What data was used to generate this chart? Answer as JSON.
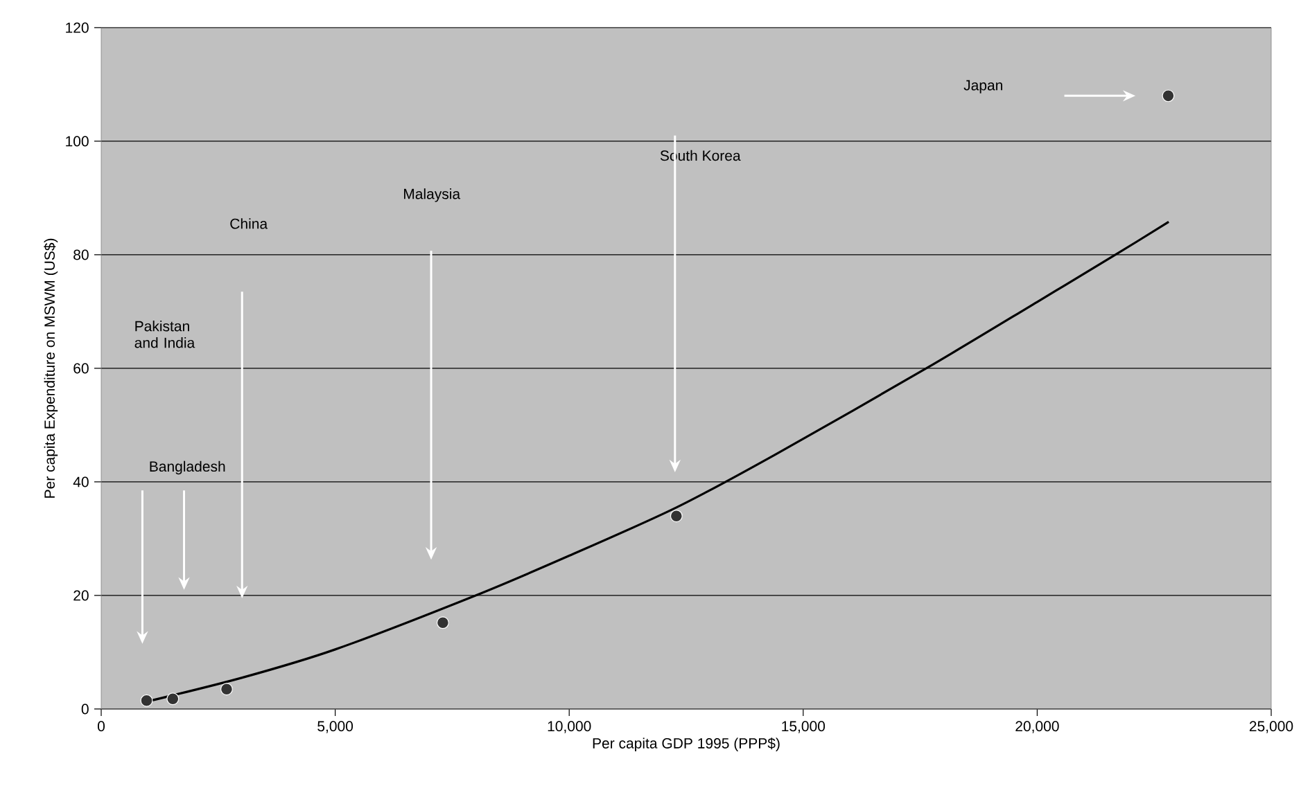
{
  "chart_data": {
    "type": "scatter",
    "xlabel": "Per capita GDP 1995 (PPP$)",
    "ylabel": "Per capita Expenditure on MSWM (US$)",
    "xlim": [
      0,
      25000
    ],
    "ylim": [
      0,
      120
    ],
    "xticks": [
      0,
      {
        "value": 5000,
        "label": "5,000"
      },
      {
        "value": 10000,
        "label": "10,000"
      },
      {
        "value": 15000,
        "label": "15,000"
      },
      {
        "value": 20000,
        "label": "20,000"
      },
      {
        "value": 25000,
        "label": "25,000"
      }
    ],
    "yticks": [
      0,
      20,
      40,
      60,
      80,
      100,
      120
    ],
    "grid": "y",
    "series": [
      {
        "marker": "circle",
        "color": "#333333",
        "x": [
          970,
          1530,
          2680,
          7300,
          12290,
          22800
        ],
        "values": [
          1.5,
          1.8,
          3.5,
          15.2,
          34,
          108
        ]
      },
      {
        "type": "line",
        "color": "#000000",
        "marker": "none",
        "x": [
          970,
          3000,
          5000,
          8000,
          10000,
          12290,
          14420,
          17630,
          20000,
          21670,
          22810
        ],
        "values": [
          1.3,
          5.5,
          10.5,
          20,
          27,
          35.5,
          44.9,
          60,
          71.7,
          80,
          85.8
        ]
      }
    ],
    "annotations": [
      "Bangladesh",
      "Pakistan and India",
      "China",
      "Malaysia",
      "South Korea",
      "Japan"
    ]
  }
}
